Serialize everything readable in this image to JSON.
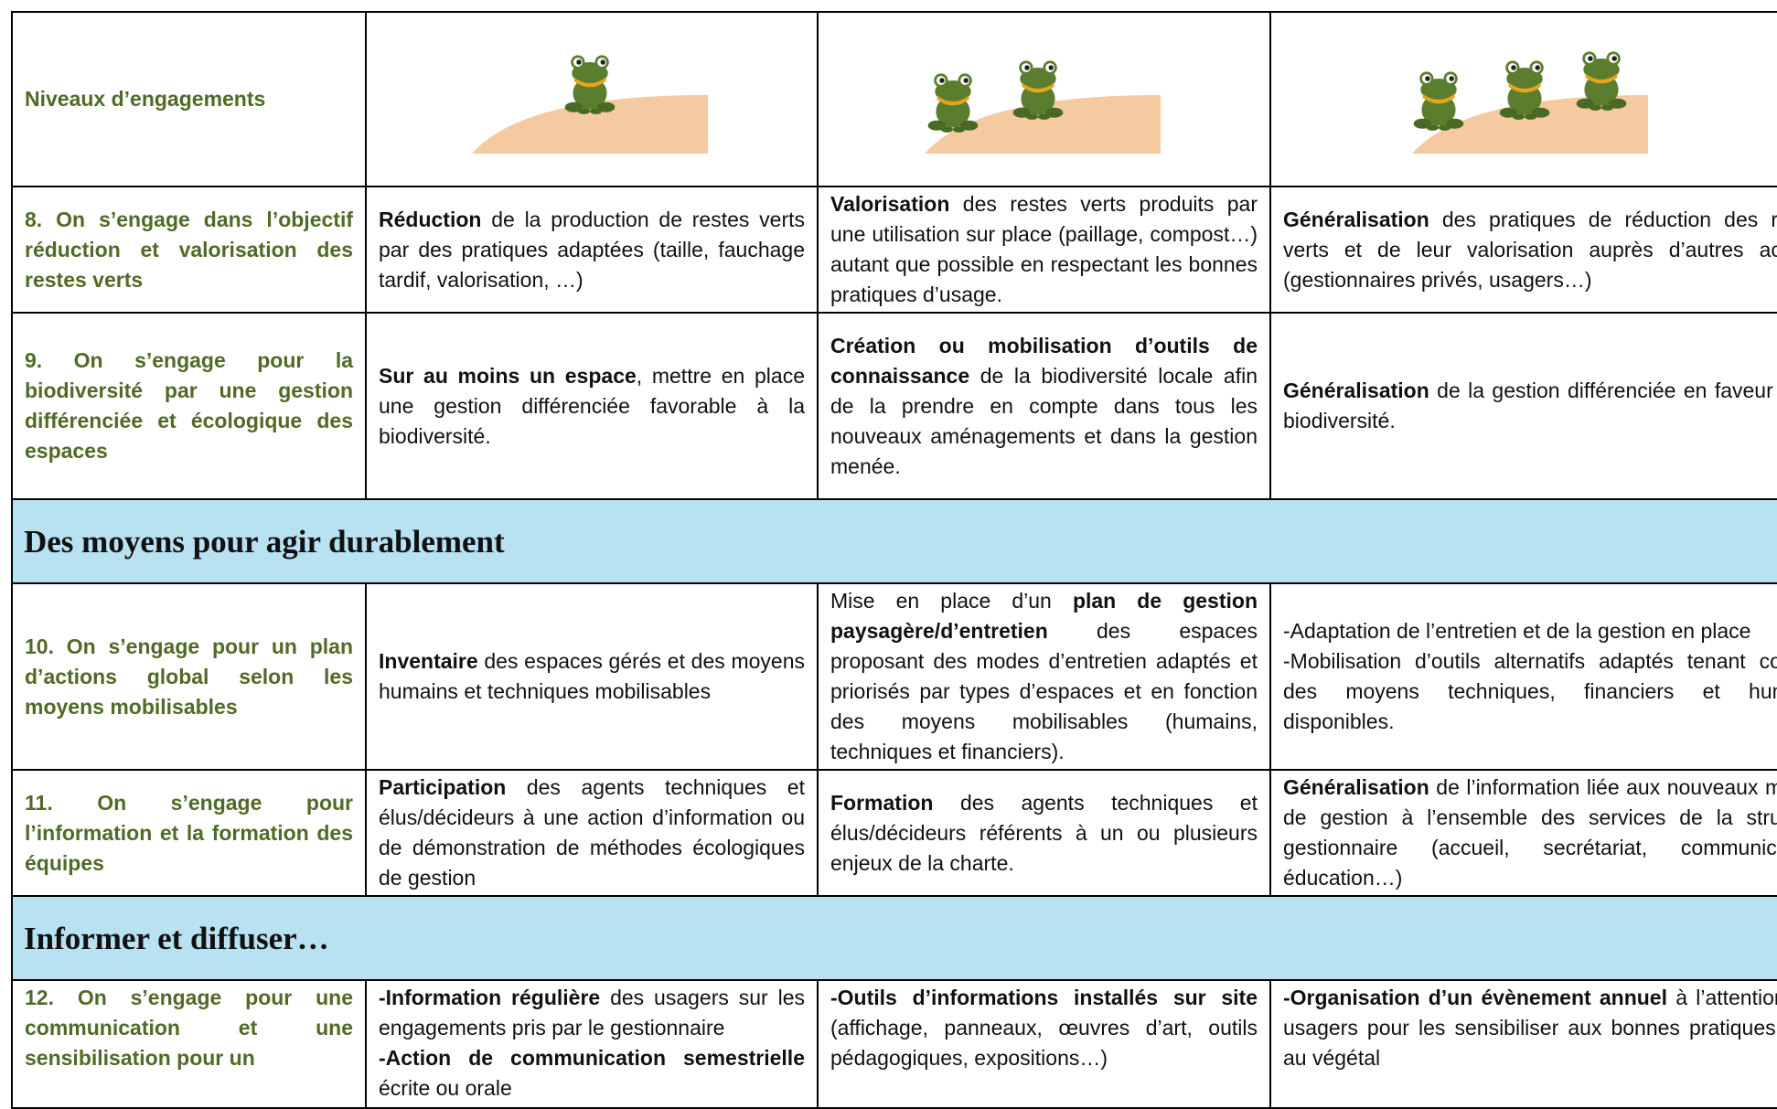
{
  "header": {
    "label": "Niveaux d’engagements"
  },
  "rows": [
    {
      "label": "8. On s’engage dans l’objectif réduction et valorisation des restes verts",
      "levels": [
        [
          [
            {
              "text": "Réduction",
              "bold": true
            },
            {
              "text": " de la production de restes verts par des pratiques adaptées (taille, fauchage tardif, valorisation, …)"
            }
          ]
        ],
        [
          [
            {
              "text": "Valorisation",
              "bold": true
            },
            {
              "text": " des restes verts produits par une utilisation sur place (paillage, compost…) autant que possible en respectant les bonnes pratiques d’usage."
            }
          ]
        ],
        [
          [
            {
              "text": "Généralisation",
              "bold": true
            },
            {
              "text": " des pratiques de réduction des restes verts et de leur valorisation auprès d’autres acteurs (gestionnaires privés, usagers…)"
            }
          ]
        ]
      ]
    },
    {
      "label": "9. On s’engage pour la biodiversité par une gestion différenciée et écologique des espaces",
      "levels": [
        [
          [
            {
              "text": "Sur au moins un espace",
              "bold": true
            },
            {
              "text": ", mettre en place une gestion différenciée favorable à la biodiversité."
            }
          ]
        ],
        [
          [
            {
              "text": "Création ou mobilisation d’outils de connaissance",
              "bold": true
            },
            {
              "text": " de la biodiversité locale afin de la prendre en compte dans tous les nouveaux aménagements et dans la gestion menée."
            }
          ]
        ],
        [
          [
            {
              "text": "Généralisation",
              "bold": true
            },
            {
              "text": " de la gestion différenciée en faveur de la biodiversité."
            }
          ]
        ]
      ]
    },
    {
      "section": "Des moyens pour agir durablement"
    },
    {
      "label": "10. On s’engage pour un plan d’actions global selon les moyens mobilisables",
      "levels": [
        [
          [
            {
              "text": "Inventaire",
              "bold": true
            },
            {
              "text": " des espaces gérés et des moyens humains et techniques mobilisables"
            }
          ]
        ],
        [
          [
            {
              "text": "Mise en place d’un "
            },
            {
              "text": "plan de gestion paysagère/d’entretien",
              "bold": true
            },
            {
              "text": " des espaces proposant des modes d’entretien adaptés et priorisés par types d’espaces et en fonction des moyens mobilisables (humains, techniques et financiers)."
            }
          ]
        ],
        [
          [
            {
              "text": "-Adaptation de l’entretien et de la gestion en place"
            }
          ],
          [
            {
              "text": "-Mobilisation d’outils alternatifs adaptés tenant compte des moyens techniques, financiers et humains disponibles."
            }
          ]
        ]
      ]
    },
    {
      "label": "11. On s’engage pour l’information et la formation des équipes",
      "levels": [
        [
          [
            {
              "text": "Participation",
              "bold": true
            },
            {
              "text": " des agents techniques et élus/décideurs à une action d’information ou de démonstration de méthodes écologiques de gestion"
            }
          ]
        ],
        [
          [
            {
              "text": "Formation",
              "bold": true
            },
            {
              "text": " des agents techniques et élus/décideurs référents à un ou plusieurs enjeux de la charte."
            }
          ]
        ],
        [
          [
            {
              "text": "Généralisation",
              "bold": true
            },
            {
              "text": " de l’information liée aux nouveaux modes de gestion à l’ensemble des services de la structure gestionnaire (accueil, secrétariat, communication, éducation…)"
            }
          ]
        ]
      ]
    },
    {
      "section": "Informer et diffuser…"
    },
    {
      "label": "12. On s’engage pour une communication et une sensibilisation pour un",
      "levels": [
        [
          [
            {
              "text": "-Information régulière",
              "bold": true
            },
            {
              "text": " des usagers sur les engagements pris par le gestionnaire"
            }
          ],
          [
            {
              "text": "-Action de communication semestrielle",
              "bold": true
            },
            {
              "text": " écrite ou orale"
            }
          ]
        ],
        [
          [
            {
              "text": "-Outils d’informations installés sur site",
              "bold": true
            },
            {
              "text": " (affichage, panneaux, œuvres d’art, outils pédagogiques, expositions…)"
            }
          ]
        ],
        [
          [
            {
              "text": "-Organisation d’un évènement annuel",
              "bold": true
            },
            {
              "text": " à l’attention des usagers pour les sensibiliser aux bonnes pratiques liées au végétal"
            }
          ]
        ]
      ]
    }
  ]
}
